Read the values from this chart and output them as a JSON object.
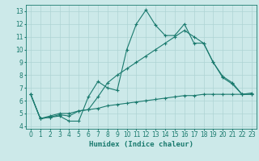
{
  "xlabel": "Humidex (Indice chaleur)",
  "xlim": [
    -0.5,
    23.5
  ],
  "ylim": [
    3.8,
    13.5
  ],
  "yticks": [
    4,
    5,
    6,
    7,
    8,
    9,
    10,
    11,
    12,
    13
  ],
  "xticks": [
    0,
    1,
    2,
    3,
    4,
    5,
    6,
    7,
    8,
    9,
    10,
    11,
    12,
    13,
    14,
    15,
    16,
    17,
    18,
    19,
    20,
    21,
    22,
    23
  ],
  "bg_color": "#cce9e9",
  "line_color": "#1a7a6e",
  "grid_color": "#aed4d4",
  "lines": [
    {
      "x": [
        0,
        1,
        2,
        3,
        4,
        5,
        6,
        7,
        8,
        9,
        10,
        11,
        12,
        13,
        14,
        15,
        16,
        17,
        18,
        19,
        20,
        21,
        22,
        23
      ],
      "y": [
        6.5,
        4.6,
        4.7,
        4.8,
        4.4,
        4.4,
        6.3,
        7.5,
        7.0,
        6.8,
        10.0,
        12.0,
        13.1,
        11.9,
        11.1,
        11.1,
        12.0,
        10.5,
        10.5,
        9.0,
        7.8,
        7.3,
        6.5,
        6.5
      ]
    },
    {
      "x": [
        0,
        1,
        2,
        3,
        4,
        5,
        6,
        7,
        8,
        9,
        10,
        11,
        12,
        13,
        14,
        15,
        16,
        17,
        18,
        19,
        20,
        21,
        22,
        23
      ],
      "y": [
        6.5,
        4.6,
        4.7,
        4.9,
        4.8,
        5.2,
        5.3,
        6.3,
        7.4,
        8.0,
        8.5,
        9.0,
        9.5,
        10.0,
        10.5,
        11.0,
        11.5,
        11.0,
        10.5,
        9.0,
        7.9,
        7.4,
        6.5,
        6.5
      ]
    },
    {
      "x": [
        0,
        1,
        2,
        3,
        4,
        5,
        6,
        7,
        8,
        9,
        10,
        11,
        12,
        13,
        14,
        15,
        16,
        17,
        18,
        19,
        20,
        21,
        22,
        23
      ],
      "y": [
        6.5,
        4.6,
        4.8,
        5.0,
        5.0,
        5.2,
        5.3,
        5.4,
        5.6,
        5.7,
        5.8,
        5.9,
        6.0,
        6.1,
        6.2,
        6.3,
        6.4,
        6.4,
        6.5,
        6.5,
        6.5,
        6.5,
        6.5,
        6.6
      ]
    }
  ]
}
